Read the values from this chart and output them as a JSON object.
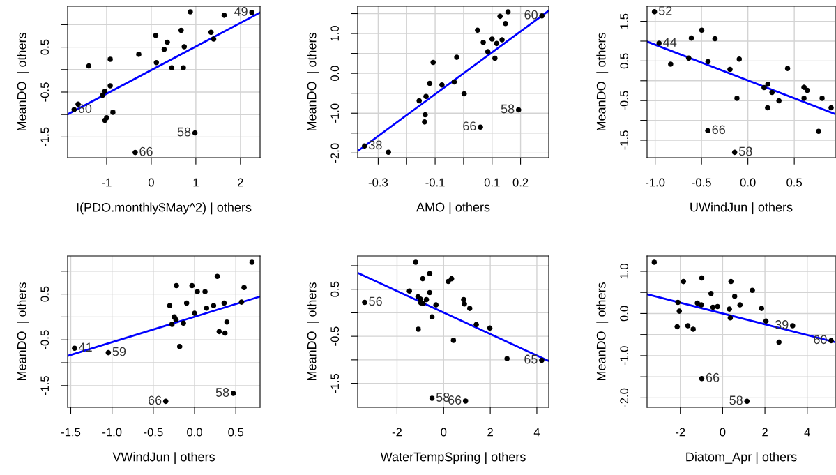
{
  "chart_data": [
    {
      "type": "scatter",
      "xlabel": "I(PDO.monthly$May^2) | others",
      "ylabel": "MeanDO  | others",
      "grid": true,
      "xlim": [
        -1.875,
        2.44
      ],
      "ylim": [
        -1.96,
        1.41
      ],
      "xticks": [
        -1,
        0,
        1,
        2
      ],
      "yticks": [
        -1.5,
        {
          "value": -1.0,
          "label": null
        },
        -0.5,
        {
          "value": 0.0,
          "label": null
        },
        0.5,
        {
          "value": 1.0,
          "label": null
        }
      ],
      "series": [
        {
          "marker": "circle",
          "color": "#000000",
          "x": [
            0.875,
            2.255,
            1.635,
            0.67,
            1.34,
            1.4,
            0.1,
            0.36,
            0.29,
            0.74,
            -0.28,
            -0.92,
            0.115,
            0.46,
            0.72,
            -1.4,
            -0.92,
            -1.04,
            -1.09,
            -1.64,
            -1.73,
            -0.86,
            -1.0,
            -1.04,
            0.98,
            -0.36
          ],
          "values": [
            1.285,
            1.27,
            1.21,
            0.875,
            0.83,
            0.68,
            0.76,
            0.61,
            0.45,
            0.51,
            0.34,
            0.23,
            0.155,
            0.04,
            0.04,
            0.08,
            -0.36,
            -0.48,
            -0.57,
            -0.77,
            -0.89,
            -0.95,
            -1.07,
            -1.13,
            -1.41,
            -1.845
          ]
        },
        {
          "type": "line",
          "color": "#0000ff",
          "x": [
            -1.875,
            2.44
          ],
          "values": [
            -0.995,
            1.27
          ]
        }
      ],
      "annotations": [
        {
          "text": "49",
          "x": 2.255,
          "y": 1.27
        },
        {
          "text": "60",
          "x": -1.73,
          "y": -0.89
        },
        {
          "text": "58",
          "x": 0.98,
          "y": -1.41
        },
        {
          "text": "66",
          "x": -0.36,
          "y": -1.845
        }
      ]
    },
    {
      "type": "scatter",
      "xlabel": "AMO | others",
      "ylabel": "MeanDO  | others",
      "grid": true,
      "xlim": [
        -0.372,
        0.299
      ],
      "ylim": [
        -2.117,
        1.684
      ],
      "xticks": [
        -0.3,
        {
          "value": -0.2,
          "label": null
        },
        -0.1,
        {
          "value": 0.0,
          "label": null
        },
        0.1,
        0.2
      ],
      "yticks": [
        {
          "value": -2.0,
          "label": "-2.0"
        },
        {
          "value": -1.5,
          "label": null
        },
        {
          "value": -1.0,
          "label": "-1.0"
        },
        {
          "value": -0.5,
          "label": null
        },
        {
          "value": 0.0,
          "label": "0.0"
        },
        {
          "value": 0.5,
          "label": null
        },
        {
          "value": 1.0,
          "label": "1.0"
        },
        {
          "value": 1.5,
          "label": null
        }
      ],
      "series": [
        {
          "marker": "circle",
          "color": "#000000",
          "x": [
            0.156,
            0.128,
            0.275,
            0.147,
            0.049,
            0.1,
            0.069,
            0.135,
            0.116,
            0.085,
            0.11,
            -0.024,
            -0.107,
            -0.119,
            -0.076,
            -0.033,
            0.002,
            -0.132,
            -0.156,
            -0.135,
            -0.137,
            0.059,
            0.193,
            -0.348,
            -0.264
          ],
          "values": [
            1.544,
            1.433,
            1.444,
            1.251,
            1.082,
            0.86,
            0.778,
            0.842,
            0.749,
            0.544,
            0.38,
            0.404,
            0.275,
            -0.251,
            -0.292,
            -0.216,
            -0.515,
            -0.579,
            -0.69,
            -1.041,
            -1.222,
            -1.351,
            -0.918,
            -1.825,
            -1.982
          ]
        },
        {
          "type": "line",
          "color": "#0000ff",
          "x": [
            -0.372,
            0.299
          ],
          "values": [
            -1.953,
            1.573
          ]
        }
      ],
      "annotations": [
        {
          "text": "60",
          "x": 0.275,
          "y": 1.444
        },
        {
          "text": "66",
          "x": 0.059,
          "y": -1.351
        },
        {
          "text": "58",
          "x": 0.193,
          "y": -0.918
        },
        {
          "text": "38",
          "x": -0.348,
          "y": -1.825
        }
      ]
    },
    {
      "type": "scatter",
      "xlabel": "UWindJun | others",
      "ylabel": "MeanDO  | others",
      "grid": true,
      "xlim": [
        -1.0875,
        0.9425
      ],
      "ylim": [
        -1.94,
        1.88
      ],
      "xticks": [
        {
          "value": -1.0,
          "label": "-1.0"
        },
        -0.5,
        {
          "value": 0.0,
          "label": "0.0"
        },
        0.5
      ],
      "yticks": [
        -1.5,
        {
          "value": -1.0,
          "label": null
        },
        -0.5,
        {
          "value": 0.0,
          "label": null
        },
        0.5,
        {
          "value": 1.0,
          "label": null
        },
        1.5
      ],
      "series": [
        {
          "marker": "circle",
          "color": "#000000",
          "x": [
            -1.0075,
            -0.958,
            -0.498,
            -0.61,
            -0.355,
            -0.833,
            -0.638,
            -0.43,
            -0.193,
            -0.093,
            0.428,
            -0.118,
            0.215,
            0.175,
            0.26,
            0.335,
            0.2125,
            0.605,
            0.64,
            0.605,
            0.8,
            0.8975,
            0.7625,
            -0.4325,
            -0.1425
          ],
          "values": [
            1.741,
            0.947,
            1.276,
            1.076,
            1.059,
            0.418,
            0.571,
            0.482,
            0.288,
            0.547,
            0.312,
            -0.441,
            -0.088,
            -0.171,
            -0.294,
            -0.506,
            -0.682,
            -0.165,
            -0.241,
            -0.441,
            -0.441,
            -0.682,
            -1.276,
            -1.259,
            -1.806
          ]
        },
        {
          "type": "line",
          "color": "#0000ff",
          "x": [
            -1.0875,
            0.9425
          ],
          "values": [
            0.988,
            -0.841
          ]
        }
      ],
      "annotations": [
        {
          "text": "52",
          "x": -1.0075,
          "y": 1.741
        },
        {
          "text": "44",
          "x": -0.958,
          "y": 0.947
        },
        {
          "text": "66",
          "x": -0.4325,
          "y": -1.259
        },
        {
          "text": "58",
          "x": -0.1425,
          "y": -1.806
        }
      ]
    },
    {
      "type": "scatter",
      "xlabel": "VWindJun | others",
      "ylabel": "MeanDO  | others",
      "grid": true,
      "xlim": [
        -1.538,
        0.794
      ],
      "ylim": [
        -1.975,
        1.332
      ],
      "xticks": [
        -1.5,
        {
          "value": -1.0,
          "label": "-1.0"
        },
        -0.5,
        {
          "value": 0.0,
          "label": "0.0"
        },
        0.5
      ],
      "yticks": [
        -1.5,
        {
          "value": -1.0,
          "label": null
        },
        -0.5,
        {
          "value": 0.0,
          "label": null
        },
        0.5,
        {
          "value": 1.0,
          "label": null
        }
      ],
      "series": [
        {
          "marker": "circle",
          "color": "#000000",
          "x": [
            0.696,
            0.276,
            -0.22,
            -0.031,
            0.6,
            0.034,
            0.127,
            -0.301,
            -0.096,
            0.358,
            0.231,
            0.569,
            0.146,
            0.0,
            -0.245,
            -0.225,
            -0.273,
            -0.135,
            0.392,
            0.299,
            0.369,
            -0.18,
            -1.454,
            -1.045,
            -0.349,
            0.47
          ],
          "values": [
            1.195,
            0.886,
            0.684,
            0.684,
            0.643,
            0.552,
            0.552,
            0.248,
            0.304,
            0.304,
            0.248,
            0.324,
            0.192,
            0.081,
            0.0,
            -0.061,
            -0.162,
            -0.137,
            -0.111,
            -0.319,
            -0.354,
            -0.648,
            -0.684,
            -0.78,
            -1.843,
            -1.671
          ]
        },
        {
          "type": "line",
          "color": "#0000ff",
          "x": [
            -1.538,
            0.794
          ],
          "values": [
            -0.851,
            0.446
          ]
        }
      ],
      "annotations": [
        {
          "text": "41",
          "x": -1.454,
          "y": -0.684
        },
        {
          "text": "59",
          "x": -1.045,
          "y": -0.78
        },
        {
          "text": "66",
          "x": -0.349,
          "y": -1.843
        },
        {
          "text": "58",
          "x": 0.47,
          "y": -1.671
        }
      ]
    },
    {
      "type": "scatter",
      "xlabel": "WaterTempSpring | others",
      "ylabel": "MeanDO  | others",
      "grid": true,
      "xlim": [
        -3.69,
        4.51
      ],
      "ylim": [
        -2.01,
        1.207
      ],
      "xticks": [
        -2,
        0,
        2,
        4
      ],
      "yticks": [
        -1.5,
        {
          "value": -1.0,
          "label": null
        },
        -0.5,
        {
          "value": 0.0,
          "label": null
        },
        0.5,
        {
          "value": 1.0,
          "label": null
        }
      ],
      "series": [
        {
          "marker": "circle",
          "color": "#000000",
          "x": [
            -1.2,
            -0.6,
            -0.9,
            0.2,
            0.34,
            -1.47,
            -0.6,
            -3.39,
            -1.1,
            -1.0,
            -0.74,
            -0.98,
            -0.88,
            -0.33,
            0.86,
            0.89,
            1.12,
            -0.5,
            1.4,
            1.98,
            -1.09,
            0.42,
            2.72,
            4.21,
            -0.5,
            0.94
          ],
          "values": [
            1.074,
            0.833,
            0.724,
            0.665,
            0.724,
            0.463,
            0.429,
            0.222,
            0.34,
            0.291,
            0.281,
            0.212,
            0.197,
            0.167,
            0.281,
            0.187,
            0.094,
            -0.089,
            -0.251,
            -0.325,
            -0.35,
            -0.586,
            -0.975,
            -1.01,
            -1.818,
            -1.877
          ]
        },
        {
          "type": "line",
          "color": "#0000ff",
          "x": [
            -3.69,
            4.51
          ],
          "values": [
            0.847,
            -1.025
          ]
        }
      ],
      "annotations": [
        {
          "text": "56",
          "x": -3.39,
          "y": 0.222
        },
        {
          "text": "65",
          "x": 4.21,
          "y": -1.01
        },
        {
          "text": "58",
          "x": -0.5,
          "y": -1.818
        },
        {
          "text": "66",
          "x": 0.94,
          "y": -1.877
        }
      ]
    },
    {
      "type": "scatter",
      "xlabel": "Diatom_Apr | others",
      "ylabel": "MeanDO  | others",
      "grid": true,
      "xlim": [
        -3.573,
        5.326
      ],
      "ylim": [
        -2.225,
        1.363
      ],
      "xticks": [
        -2,
        0,
        2,
        4
      ],
      "yticks": [
        {
          "value": -2.0,
          "label": "-2.0"
        },
        {
          "value": -1.5,
          "label": null
        },
        {
          "value": -1.0,
          "label": "-1.0"
        },
        {
          "value": -0.5,
          "label": null
        },
        {
          "value": 0.0,
          "label": "0.0"
        },
        {
          "value": 0.5,
          "label": null
        },
        {
          "value": 1.0,
          "label": "1.0"
        }
      ],
      "series": [
        {
          "marker": "circle",
          "color": "#000000",
          "x": [
            -3.233,
            -1.852,
            -0.986,
            0.395,
            1.403,
            -0.548,
            0.57,
            -2.115,
            -1.195,
            -1.008,
            0.822,
            -0.46,
            -0.241,
            0.318,
            1.841,
            -2.049,
            0.362,
            2.049,
            -2.148,
            -1.644,
            -1.392,
            3.31,
            2.663,
            5.129,
            -0.986,
            1.151
          ],
          "values": [
            1.214,
            0.758,
            0.841,
            0.758,
            0.549,
            0.473,
            0.407,
            0.264,
            0.247,
            0.203,
            0.203,
            0.148,
            0.165,
            0.104,
            0.121,
            0.055,
            -0.104,
            -0.181,
            -0.313,
            -0.291,
            -0.374,
            -0.291,
            -0.681,
            -0.643,
            -1.544,
            -2.082
          ]
        },
        {
          "type": "line",
          "color": "#0000ff",
          "x": [
            -3.573,
            5.326
          ],
          "values": [
            0.456,
            -0.681
          ]
        }
      ],
      "annotations": [
        {
          "text": "39",
          "x": 3.31,
          "y": -0.291
        },
        {
          "text": "60",
          "x": 5.129,
          "y": -0.643
        },
        {
          "text": "66",
          "x": -0.986,
          "y": -1.544
        },
        {
          "text": "58",
          "x": 1.151,
          "y": -2.082
        }
      ]
    }
  ]
}
